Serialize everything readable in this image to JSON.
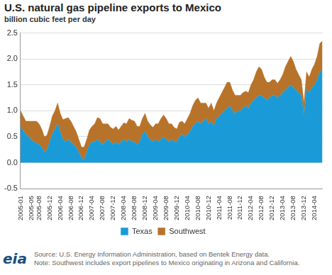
{
  "chart_data": {
    "type": "area",
    "title": "U.S. natural gas pipeline exports to Mexico",
    "subtitle": "billion cubic feet per day",
    "source": "Source: U.S. Energy Information Administration, based on Bentek Energy data.",
    "note": "Note: Southwest includes export pipelines to Mexico originating in Arizona and California.",
    "logo": "eia",
    "categories": [
      "2005-01",
      null,
      null,
      null,
      "2005-05",
      null,
      null,
      "2005-08",
      null,
      null,
      null,
      "2005-12",
      null,
      null,
      null,
      "2006-04",
      null,
      null,
      null,
      "2006-08",
      null,
      null,
      null,
      "2006-12",
      null,
      null,
      null,
      "2007-04",
      null,
      null,
      null,
      "2007-08",
      null,
      null,
      null,
      "2007-12",
      null,
      null,
      null,
      "2008-04",
      null,
      null,
      null,
      "2008-08",
      null,
      null,
      null,
      "2008-12",
      null,
      null,
      null,
      "2009-04",
      null,
      null,
      null,
      "2009-08",
      null,
      null,
      null,
      "2009-12",
      null,
      null,
      null,
      "2010-04",
      null,
      null,
      null,
      "2010-08",
      null,
      null,
      null,
      "2010-12",
      null,
      null,
      null,
      "2011-04",
      null,
      null,
      null,
      "2011-08",
      null,
      null,
      null,
      "2011-12",
      null,
      null,
      null,
      "2012-04",
      null,
      null,
      null,
      "2012-08",
      null,
      null,
      null,
      "2012-12",
      null,
      null,
      null,
      "2013-04",
      null,
      null,
      null,
      "2013-08",
      null,
      null,
      null,
      "2013-12",
      null,
      null,
      null,
      "2014-04",
      null,
      null,
      null
    ],
    "series": [
      {
        "name": "Texas",
        "color": "#1a9bd7",
        "values": [
          0.7,
          0.62,
          0.55,
          0.5,
          0.45,
          0.4,
          0.38,
          0.35,
          0.3,
          0.2,
          0.25,
          0.4,
          0.55,
          0.65,
          0.75,
          0.6,
          0.45,
          0.4,
          0.45,
          0.4,
          0.35,
          0.3,
          0.2,
          0.1,
          0.05,
          0.2,
          0.35,
          0.4,
          0.4,
          0.45,
          0.4,
          0.35,
          0.4,
          0.45,
          0.4,
          0.35,
          0.4,
          0.35,
          0.4,
          0.45,
          0.4,
          0.45,
          0.4,
          0.4,
          0.35,
          0.4,
          0.55,
          0.6,
          0.5,
          0.45,
          0.4,
          0.45,
          0.4,
          0.45,
          0.5,
          0.45,
          0.4,
          0.45,
          0.4,
          0.4,
          0.5,
          0.55,
          0.5,
          0.55,
          0.6,
          0.7,
          0.75,
          0.8,
          0.75,
          0.8,
          0.85,
          0.75,
          0.8,
          0.7,
          0.85,
          0.9,
          0.95,
          1.0,
          1.05,
          1.1,
          1.0,
          0.95,
          1.0,
          1.0,
          1.05,
          1.1,
          1.05,
          1.15,
          1.2,
          1.25,
          1.3,
          1.3,
          1.25,
          1.2,
          1.25,
          1.3,
          1.3,
          1.25,
          1.3,
          1.35,
          1.4,
          1.45,
          1.5,
          1.45,
          1.4,
          1.35,
          1.3,
          0.9,
          1.4,
          1.35,
          1.45,
          1.5,
          1.6,
          1.75,
          1.8
        ]
      },
      {
        "name": "Southwest",
        "color": "#b8732a",
        "values": [
          0.3,
          0.28,
          0.25,
          0.3,
          0.35,
          0.4,
          0.42,
          0.4,
          0.35,
          0.3,
          0.28,
          0.3,
          0.35,
          0.35,
          0.4,
          0.35,
          0.38,
          0.45,
          0.42,
          0.4,
          0.35,
          0.3,
          0.25,
          0.2,
          0.25,
          0.25,
          0.28,
          0.3,
          0.35,
          0.42,
          0.45,
          0.4,
          0.35,
          0.3,
          0.28,
          0.3,
          0.3,
          0.28,
          0.3,
          0.32,
          0.35,
          0.4,
          0.42,
          0.4,
          0.35,
          0.3,
          0.3,
          0.35,
          0.3,
          0.28,
          0.28,
          0.3,
          0.35,
          0.4,
          0.42,
          0.4,
          0.35,
          0.3,
          0.28,
          0.25,
          0.28,
          0.25,
          0.25,
          0.3,
          0.35,
          0.4,
          0.45,
          0.45,
          0.4,
          0.35,
          0.3,
          0.3,
          0.35,
          0.3,
          0.3,
          0.35,
          0.4,
          0.45,
          0.5,
          0.45,
          0.4,
          0.35,
          0.3,
          0.3,
          0.3,
          0.28,
          0.3,
          0.35,
          0.4,
          0.5,
          0.55,
          0.5,
          0.4,
          0.35,
          0.3,
          0.3,
          0.3,
          0.28,
          0.3,
          0.35,
          0.45,
          0.5,
          0.55,
          0.5,
          0.4,
          0.35,
          0.3,
          0.25,
          0.35,
          0.3,
          0.35,
          0.4,
          0.45,
          0.55,
          0.55
        ]
      }
    ],
    "ylim": [
      -0.5,
      2.5
    ],
    "yticks": [
      -0.5,
      {
        "value": 0,
        "label": "0.0"
      },
      0.5,
      {
        "value": 1,
        "label": "1.0"
      },
      1.5,
      {
        "value": 2,
        "label": "2.0"
      },
      2.5
    ],
    "stacked": true,
    "grid": true,
    "legend": "bottom"
  }
}
